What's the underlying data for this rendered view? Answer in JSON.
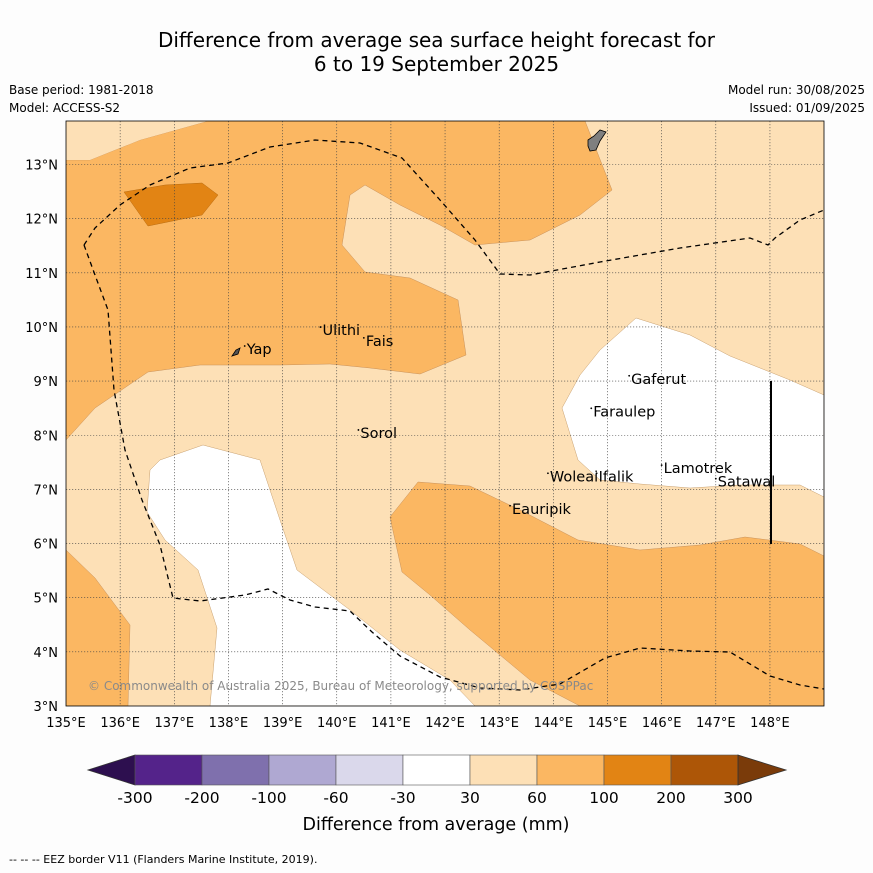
{
  "title_line1": "Difference from average sea surface height forecast for",
  "title_line2": "6 to 19 September 2025",
  "base_period": "Base period: 1981-2018",
  "model": "Model: ACCESS-S2",
  "model_run": "Model run: 30/08/2025",
  "issued": "Issued: 01/09/2025",
  "copyright": "© Commonwealth of Australia 2025, Bureau of Meteorology, supported by COSPPac",
  "footer": "--  --  -- EEZ border V11 (Flanders Marine Institute, 2019).",
  "map": {
    "lon_range": [
      135,
      149
    ],
    "lat_range": [
      3,
      13.8
    ],
    "lon_ticks": [
      "135°E",
      "136°E",
      "137°E",
      "138°E",
      "139°E",
      "140°E",
      "141°E",
      "142°E",
      "143°E",
      "144°E",
      "145°E",
      "146°E",
      "147°E",
      "148°E"
    ],
    "lat_ticks": [
      "3°N",
      "4°N",
      "5°N",
      "6°N",
      "7°N",
      "8°N",
      "9°N",
      "10°N",
      "11°N",
      "12°N",
      "13°N"
    ],
    "places": [
      {
        "name": "Yap",
        "lon": 138.3,
        "lat": 9.5
      },
      {
        "name": "Ulithi",
        "lon": 139.7,
        "lat": 9.85
      },
      {
        "name": "Fais",
        "lon": 140.5,
        "lat": 9.65
      },
      {
        "name": "Gaferut",
        "lon": 145.4,
        "lat": 8.95
      },
      {
        "name": "Faraulep",
        "lon": 144.7,
        "lat": 8.35
      },
      {
        "name": "Sorol",
        "lon": 140.4,
        "lat": 7.95
      },
      {
        "name": "Woleai",
        "lon": 143.9,
        "lat": 7.15
      },
      {
        "name": "Ifalik",
        "lon": 144.8,
        "lat": 7.15
      },
      {
        "name": "Lamotrek",
        "lon": 146.0,
        "lat": 7.3
      },
      {
        "name": "Satawal",
        "lon": 147.0,
        "lat": 7.05
      },
      {
        "name": "Eauripik",
        "lon": 143.2,
        "lat": 6.55
      }
    ]
  },
  "colorbar": {
    "label": "Difference from average (mm)",
    "ticks": [
      "-300",
      "-200",
      "-100",
      "-60",
      "-30",
      "30",
      "60",
      "100",
      "200",
      "300"
    ],
    "colors": [
      "#2d0f4f",
      "#54238a",
      "#7f70ad",
      "#afa8d2",
      "#dad8eb",
      "#ffffff",
      "#fde0b6",
      "#fbb762",
      "#e28414",
      "#ad5607",
      "#7a3b0a"
    ]
  },
  "colors": {
    "c30_60": "#fde0b6",
    "c60_100": "#fbb762",
    "c100_200": "#e28414",
    "neutral": "#ffffff",
    "land": "#7f7f7f"
  }
}
